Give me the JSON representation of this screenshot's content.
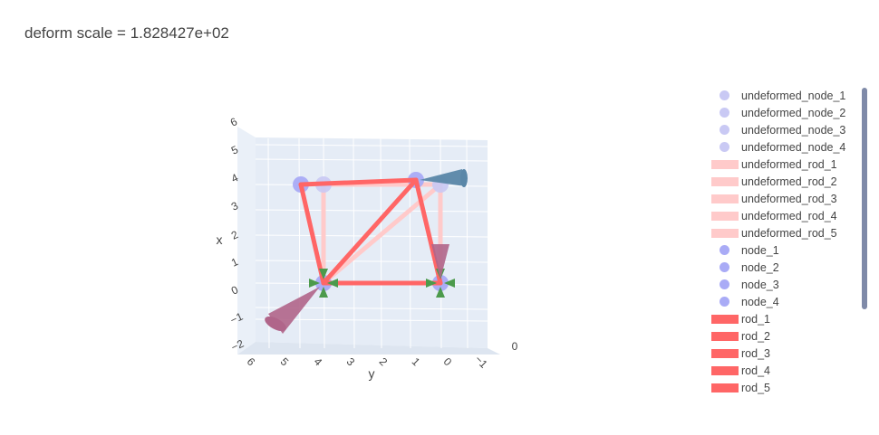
{
  "title": "deform scale = 1.828427e+02",
  "chart_data": {
    "type": "scatter3d",
    "title": "deform scale = 1.828427e+02",
    "axes": {
      "x": {
        "label": "x",
        "ticks": [
          "−2",
          "−1",
          "0",
          "1",
          "2",
          "3",
          "4",
          "5",
          "6"
        ]
      },
      "y": {
        "label": "y",
        "ticks": [
          "6",
          "5",
          "4",
          "3",
          "2",
          "1",
          "0",
          "−1"
        ]
      },
      "z": {
        "label": "",
        "ticks": [
          "0"
        ]
      }
    },
    "undeformed_nodes": [
      {
        "name": "undeformed_node_1",
        "x": 0,
        "y": 4
      },
      {
        "name": "undeformed_node_2",
        "x": 0,
        "y": 0
      },
      {
        "name": "undeformed_node_3",
        "x": 4,
        "y": 0
      },
      {
        "name": "undeformed_node_4",
        "x": 4,
        "y": 4
      }
    ],
    "nodes": [
      {
        "name": "node_1",
        "x": 0,
        "y": 4
      },
      {
        "name": "node_2",
        "x": 0,
        "y": 0
      },
      {
        "name": "node_3",
        "x": 4.15,
        "y": 0.85
      },
      {
        "name": "node_4",
        "x": 3.85,
        "y": 4.85
      }
    ],
    "undeformed_rods": [
      {
        "name": "undeformed_rod_1",
        "from": 1,
        "to": 2
      },
      {
        "name": "undeformed_rod_2",
        "from": 2,
        "to": 3
      },
      {
        "name": "undeformed_rod_3",
        "from": 3,
        "to": 4
      },
      {
        "name": "undeformed_rod_4",
        "from": 4,
        "to": 1
      },
      {
        "name": "undeformed_rod_5",
        "from": 1,
        "to": 3
      }
    ],
    "rods": [
      {
        "name": "rod_1",
        "from": 1,
        "to": 2
      },
      {
        "name": "rod_2",
        "from": 2,
        "to": 3
      },
      {
        "name": "rod_3",
        "from": 3,
        "to": 4
      },
      {
        "name": "rod_4",
        "from": 4,
        "to": 1
      },
      {
        "name": "rod_5",
        "from": 1,
        "to": 3
      }
    ],
    "colors": {
      "undeformed_node": "#c9c9f4",
      "undeformed_rod": "#ffcaca",
      "node": "#a9abf6",
      "rod": "#ff6666",
      "support_cone": "#4c9a4c",
      "load_cone_purple": "#b0658a",
      "load_cone_blue": "#5a87a8",
      "scene_bg": "#e5ecf6"
    }
  },
  "legend": [
    {
      "label": "undeformed_node_1",
      "kind": "marker",
      "color": "#c9c9f4"
    },
    {
      "label": "undeformed_node_2",
      "kind": "marker",
      "color": "#c9c9f4"
    },
    {
      "label": "undeformed_node_3",
      "kind": "marker",
      "color": "#c9c9f4"
    },
    {
      "label": "undeformed_node_4",
      "kind": "marker",
      "color": "#c9c9f4"
    },
    {
      "label": "undeformed_rod_1",
      "kind": "line",
      "color": "#ffcaca"
    },
    {
      "label": "undeformed_rod_2",
      "kind": "line",
      "color": "#ffcaca"
    },
    {
      "label": "undeformed_rod_3",
      "kind": "line",
      "color": "#ffcaca"
    },
    {
      "label": "undeformed_rod_4",
      "kind": "line",
      "color": "#ffcaca"
    },
    {
      "label": "undeformed_rod_5",
      "kind": "line",
      "color": "#ffcaca"
    },
    {
      "label": "node_1",
      "kind": "marker",
      "color": "#a9abf6"
    },
    {
      "label": "node_2",
      "kind": "marker",
      "color": "#a9abf6"
    },
    {
      "label": "node_3",
      "kind": "marker",
      "color": "#a9abf6"
    },
    {
      "label": "node_4",
      "kind": "marker",
      "color": "#a9abf6"
    },
    {
      "label": "rod_1",
      "kind": "line",
      "color": "#ff6666"
    },
    {
      "label": "rod_2",
      "kind": "line",
      "color": "#ff6666"
    },
    {
      "label": "rod_3",
      "kind": "line",
      "color": "#ff6666"
    },
    {
      "label": "rod_4",
      "kind": "line",
      "color": "#ff6666"
    },
    {
      "label": "rod_5",
      "kind": "line",
      "color": "#ff6666"
    }
  ]
}
